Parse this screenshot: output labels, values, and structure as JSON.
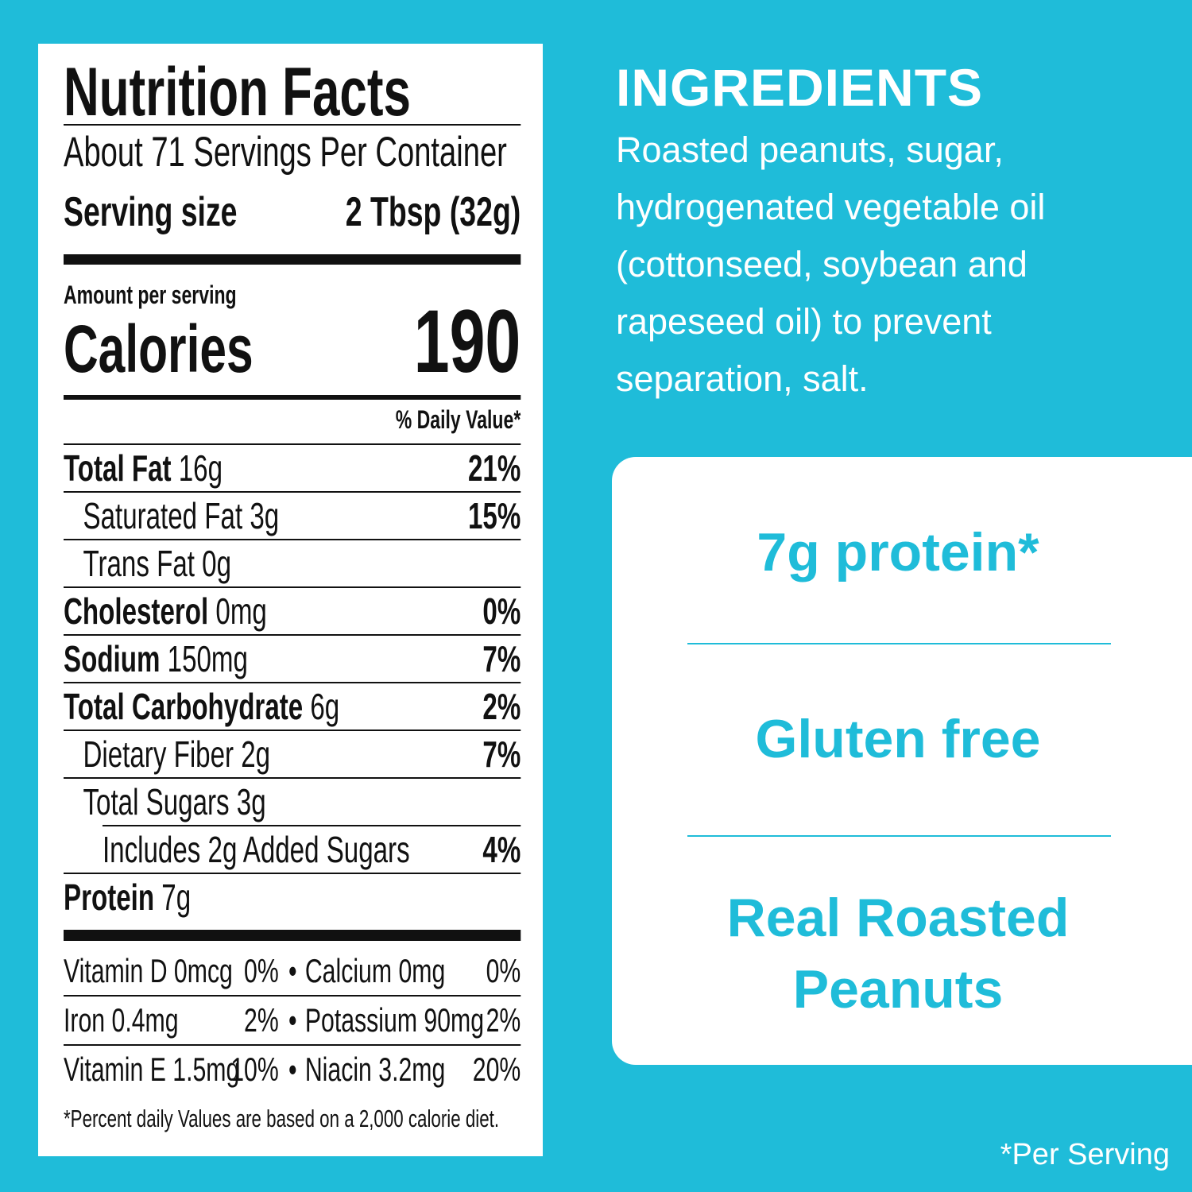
{
  "nutrition_facts": {
    "title": "Nutrition Facts",
    "servings": "About 71 Servings Per Container",
    "serving_size_label": "Serving size",
    "serving_size_value": "2 Tbsp (32g)",
    "amount_per_serving": "Amount per serving",
    "calories_label": "Calories",
    "calories": 190,
    "daily_value_header": "% Daily Value*",
    "rows": [
      {
        "label": "Total Fat",
        "amount": "16g",
        "dv": "21%",
        "bold": true,
        "indent": 0
      },
      {
        "label": "Saturated Fat 3g",
        "dv": "15%",
        "bold": false,
        "indent": 1
      },
      {
        "label": "Trans Fat 0g",
        "bold": false,
        "indent": 1
      },
      {
        "label": "Cholesterol",
        "amount": "0mg",
        "dv": "0%",
        "bold": true,
        "indent": 0
      },
      {
        "label": "Sodium",
        "amount": "150mg",
        "dv": "7%",
        "bold": true,
        "indent": 0
      },
      {
        "label": "Total Carbohydrate",
        "amount": "6g",
        "dv": "2%",
        "bold": true,
        "indent": 0
      },
      {
        "label": "Dietary Fiber 2g",
        "dv": "7%",
        "bold": false,
        "indent": 1
      },
      {
        "label": "Total Sugars 3g",
        "bold": false,
        "indent": 1
      },
      {
        "label": "Includes 2g Added Sugars",
        "dv": "4%",
        "bold": false,
        "indent": 2
      },
      {
        "label": "Protein",
        "amount": "7g",
        "bold": true,
        "indent": 0
      }
    ],
    "separator": "•",
    "vitamins": [
      [
        "Vitamin D 0mcg",
        "0%",
        "Calcium 0mg",
        "0%"
      ],
      [
        "Iron 0.4mg",
        "2%",
        "Potassium 90mg",
        "2%"
      ],
      [
        "Vitamin E 1.5mg",
        "10%",
        "Niacin 3.2mg",
        "20%"
      ]
    ],
    "footnote": "*Percent daily Values are based on a 2,000 calorie diet."
  },
  "ingredients": {
    "title": "INGREDIENTS",
    "lines": [
      "Roasted peanuts, sugar,",
      "hydrogenated vegetable oil",
      "(cottonseed, soybean and",
      "rapeseed oil) to prevent",
      "separation, salt."
    ]
  },
  "highlights": [
    [
      "7g protein*"
    ],
    [
      "Gluten free"
    ],
    [
      "Real Roasted",
      "Peanuts"
    ]
  ],
  "note": "*Per Serving"
}
